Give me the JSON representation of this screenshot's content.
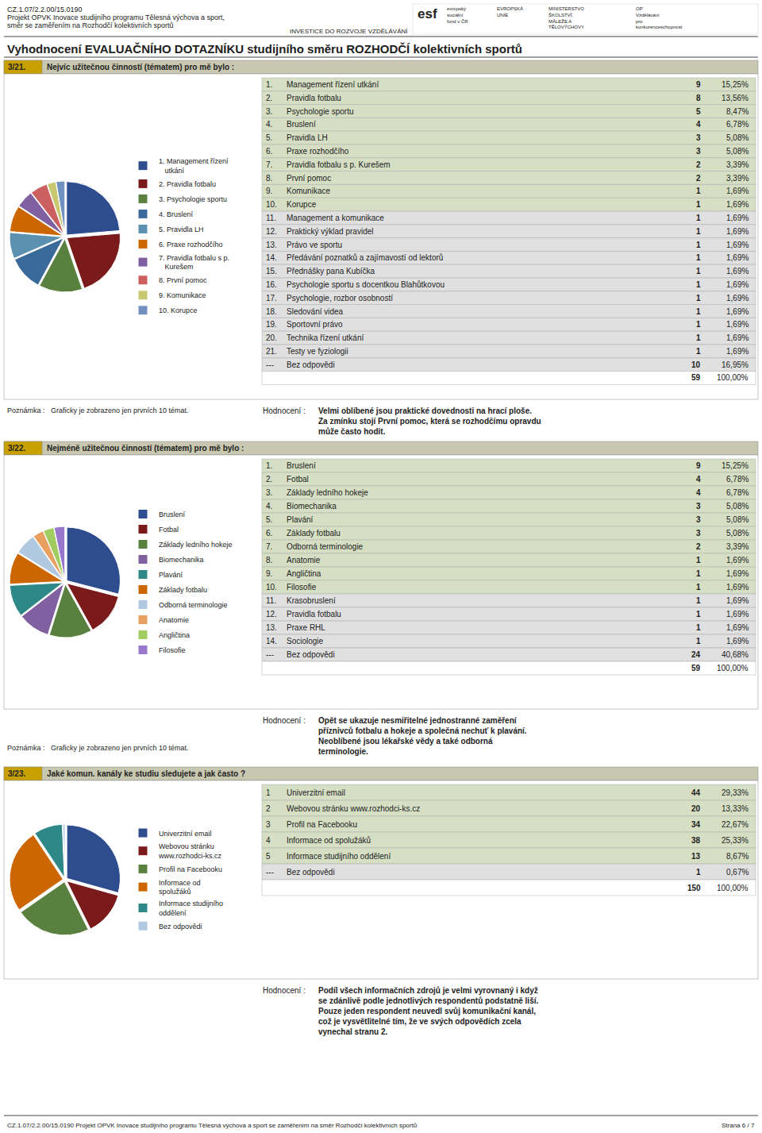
{
  "header": [
    "CZ.1.07/2.2.00/15.0190",
    "Projekt OPVK Inovace studijního programu Tělesná výchova a sport,",
    "směr se zaměřením na Rozhodčí kolektivních sportů"
  ],
  "logo_texts": [
    "esf",
    "evropský\nsociální\nfond v ČR",
    "EVROPSKÁ\nUNIE",
    "MINISTERSTVO\nŠKOLSTVÍ,\nMÁLEŽE A\nTĚLOVÝCHOVY",
    "OP\nVzdělávání\npro\nkonkurenceschopnost",
    "INVESTICE DO ROZVOJE VZDĚLÁVÁNÍ"
  ],
  "title": "Vyhodnocení EVALUAČNÍHO DOTAZNÍKU studijního směru ROZHODČÍ kolektivních sportů",
  "footer": "CZ.1.07/2.2.00/15.0190 Projekt OPVK Inovace studijního programu Tělesná výchova a sport se zaměřením na směr Rozhodčí kolektivních sportů",
  "footer_page": "Strana 6 / 7",
  "section_label_color": "#c8a000",
  "section_header_color": "#c8c8b0",
  "row_highlight_color": "#d6dfc4",
  "row_color": "#e0e0e0",
  "chart_data": [
    {
      "type": "pie",
      "label": "3/21.",
      "title": "Nejvíc užitečnou činností (tématem) pro mě bylo :",
      "categories": [
        "1. Management řízení\n   utkání",
        "2. Pravidla fotbalu",
        "3. Psychologie sportu",
        "4. Bruslení",
        "5. Pravidla LH",
        "6. Praxe rozhodčího",
        "7. Pravidla fotbalu s p.\n   Kurešem",
        "8. První pomoc",
        "9. Komunikace",
        "10. Korupce"
      ],
      "values": [
        9,
        8,
        5,
        4,
        3,
        3,
        2,
        2,
        1,
        1
      ],
      "colors": [
        "#2e4d8f",
        "#7b1a1a",
        "#5a8040",
        "#3a6a9a",
        "#5b90b0",
        "#cc6600",
        "#8060a0",
        "#cc6060",
        "#c8c870",
        "#7090c0"
      ],
      "table": {
        "rows": [
          [
            "1.",
            "Management řízení utkání",
            "9",
            "15,25%"
          ],
          [
            "2.",
            "Pravidla fotbalu",
            "8",
            "13,56%"
          ],
          [
            "3.",
            "Psychologie sportu",
            "5",
            "8,47%"
          ],
          [
            "4.",
            "Bruslení",
            "4",
            "6,78%"
          ],
          [
            "5.",
            "Pravidla LH",
            "3",
            "5,08%"
          ],
          [
            "6.",
            "Praxe rozhodčího",
            "3",
            "5,08%"
          ],
          [
            "7.",
            "Pravidla fotbalu s p. Kurešem",
            "2",
            "3,39%"
          ],
          [
            "8.",
            "První pomoc",
            "2",
            "3,39%"
          ],
          [
            "9.",
            "Komunikace",
            "1",
            "1,69%"
          ],
          [
            "10.",
            "Korupce",
            "1",
            "1,69%"
          ],
          [
            "11.",
            "Management a komunikace",
            "1",
            "1,69%"
          ],
          [
            "12.",
            "Praktický výklad pravidel",
            "1",
            "1,69%"
          ],
          [
            "13.",
            "Právo ve sportu",
            "1",
            "1,69%"
          ],
          [
            "14.",
            "Předávání poznatků a zajímavostí od lektorů",
            "1",
            "1,69%"
          ],
          [
            "15.",
            "Přednášky pana Kubíčka",
            "1",
            "1,69%"
          ],
          [
            "16.",
            "Psychologie sportu s docentkou Blahůtkovou",
            "1",
            "1,69%"
          ],
          [
            "17.",
            "Psychologie, rozbor osobností",
            "1",
            "1,69%"
          ],
          [
            "18.",
            "Sledování videa",
            "1",
            "1,69%"
          ],
          [
            "19.",
            "Sportovní právo",
            "1",
            "1,69%"
          ],
          [
            "20.",
            "Technika řízení utkání",
            "1",
            "1,69%"
          ],
          [
            "21.",
            "Testy ve fyziologii",
            "1",
            "1,69%"
          ],
          [
            "---",
            "Bez odpovědi",
            "10",
            "16,95%"
          ]
        ],
        "total": [
          "59",
          "100,00%"
        ],
        "highlighted_rows": 10
      },
      "note": "Poznámka :   Graficky je zobrazeno jen prvních 10 témat.",
      "eval_label": "Hodnocení :",
      "eval_text": "Velmi oblíbené jsou praktické dovednosti na hrací ploše.\nZa zmínku stojí První pomoc, která se rozhodčímu opravdu\nmůže často hodit."
    },
    {
      "type": "pie",
      "label": "3/22.",
      "title": "Nejméně užitečnou činností (tématem) pro mě bylo :",
      "categories": [
        "Bruslení",
        "Fotbal",
        "Základy ledního hokeje",
        "Biomechanika",
        "Plavání",
        "Základy fotbalu",
        "Odborná terminologie",
        "Anatomie",
        "Angličtina",
        "Filosofie"
      ],
      "values": [
        9,
        4,
        4,
        3,
        3,
        3,
        2,
        1,
        1,
        1
      ],
      "colors": [
        "#2e4d8f",
        "#7b1a1a",
        "#5a8040",
        "#8060a0",
        "#2e8888",
        "#cc6600",
        "#b0c8e0",
        "#e8a060",
        "#a0cc60",
        "#9878cc"
      ],
      "table": {
        "rows": [
          [
            "1.",
            "Bruslení",
            "9",
            "15,25%"
          ],
          [
            "2.",
            "Fotbal",
            "4",
            "6,78%"
          ],
          [
            "3.",
            "Základy ledního hokeje",
            "4",
            "6,78%"
          ],
          [
            "4.",
            "Biomechanika",
            "3",
            "5,08%"
          ],
          [
            "5.",
            "Plavání",
            "3",
            "5,08%"
          ],
          [
            "6.",
            "Základy fotbalu",
            "3",
            "5,08%"
          ],
          [
            "7.",
            "Odborná terminologie",
            "2",
            "3,39%"
          ],
          [
            "8.",
            "Anatomie",
            "1",
            "1,69%"
          ],
          [
            "9.",
            "Angličtina",
            "1",
            "1,69%"
          ],
          [
            "10.",
            "Filosofie",
            "1",
            "1,69%"
          ],
          [
            "11.",
            "Krasobruslení",
            "1",
            "1,69%"
          ],
          [
            "12.",
            "Pravidla fotbalu",
            "1",
            "1,69%"
          ],
          [
            "13.",
            "Praxe RHL",
            "1",
            "1,69%"
          ],
          [
            "14.",
            "Sociologie",
            "1",
            "1,69%"
          ],
          [
            "---",
            "Bez odpovědi",
            "24",
            "40,68%"
          ]
        ],
        "total": [
          "59",
          "100,00%"
        ],
        "highlighted_rows": 10
      },
      "note": "Poznámka :   Graficky je zobrazeno jen prvních 10 témat.",
      "eval_label": "Hodnocení :",
      "eval_text": "Opět se ukazuje nesmiřitelné jednostranné zaměření\npříznivců fotbalu a hokeje a společná nechuť k plavání.\nNeoblíbené jsou lékařské vědy a také odborná\nterminologie."
    },
    {
      "type": "pie",
      "label": "3/23.",
      "title": "Jaké komun. kanály ke studiu sledujete a jak často ?",
      "categories": [
        "Univerzitní email",
        "Webovou stránku\nwww.rozhodci-ks.cz",
        "Profil na Facebooku",
        "Informace od\nspolužáků",
        "Informace studijního\noddělení",
        "Bez odpovědi"
      ],
      "values": [
        44,
        20,
        34,
        38,
        13,
        1
      ],
      "colors": [
        "#2e4d8f",
        "#7b1a1a",
        "#5a8040",
        "#cc6600",
        "#2e8888",
        "#b0c8e0"
      ],
      "table": {
        "rows": [
          [
            "1",
            "Univerzitní email",
            "44",
            "29,33%"
          ],
          [
            "2",
            "Webovou stránku www.rozhodci-ks.cz",
            "20",
            "13,33%"
          ],
          [
            "3",
            "Profil na Facebooku",
            "34",
            "22,67%"
          ],
          [
            "4",
            "Informace od spolužáků",
            "38",
            "25,33%"
          ],
          [
            "5",
            "Informace studijního oddělení",
            "13",
            "8,67%"
          ],
          [
            "---",
            "Bez odpovědi",
            "1",
            "0,67%"
          ]
        ],
        "total": [
          "150",
          "100,00%"
        ],
        "highlighted_rows": 5
      },
      "eval_label": "Hodnocení :",
      "eval_text": "Podíl všech informačních zdrojů je velmi vyrovnaný i když\nse zdánlivě podle jednotlivých respondentů podstatně liší.\nPouze jeden respondent neuvedl svůj komunikační kanál,\ncož je vysvětlitelné tím, že ve svých odpovědích zcela\nvynechal stranu 2."
    }
  ]
}
